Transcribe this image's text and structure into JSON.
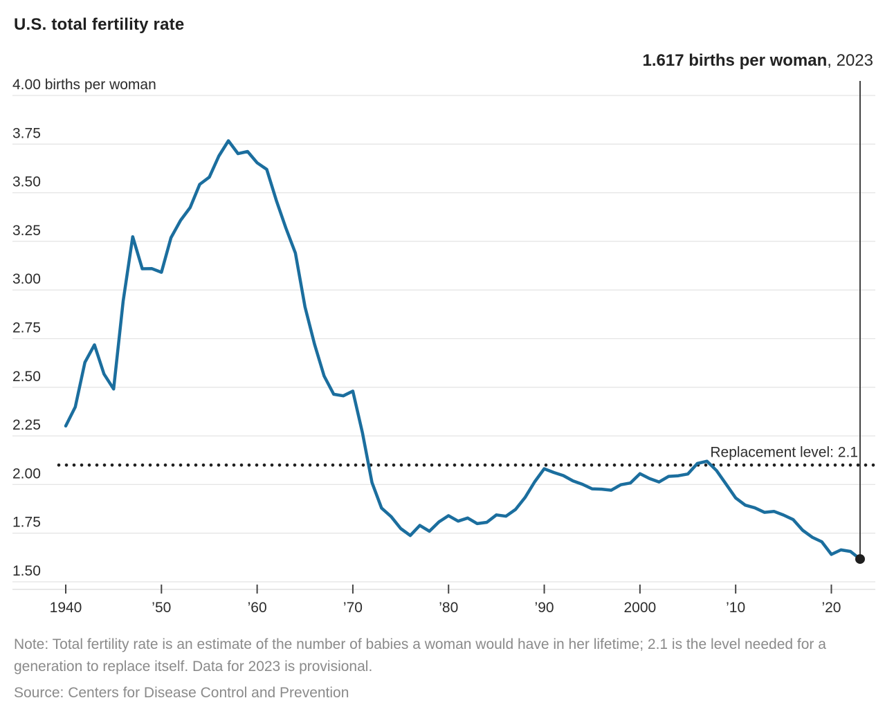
{
  "title": "U.S. total fertility rate",
  "annotation": {
    "value_bold": "1.617 births per woman",
    "year_suffix": ", 2023"
  },
  "note": "Note: Total fertility rate is an estimate of the number of babies a woman would have in her lifetime; 2.1 is the level needed for a generation to replace itself. Data for 2023 is provisional.",
  "source": "Source: Centers for Disease Control and Prevention",
  "colors": {
    "line": "#1b6e9e",
    "grid": "#e4e4e4",
    "axis_line": "#d9d9d9",
    "tick": "#444444",
    "axis_label": "#2b2b2b",
    "muted_text": "#8a8a8a",
    "dark": "#1e1e1e",
    "vertical_line": "#3f3f3f"
  },
  "chart_data": {
    "type": "line",
    "title": "U.S. total fertility rate",
    "unit": "births per woman",
    "xlabel": "",
    "ylabel": "births per woman",
    "ylim": [
      1.5,
      4.0
    ],
    "xlim": [
      1940,
      2023
    ],
    "grid": true,
    "legend_position": "none",
    "y_ticks": [
      {
        "v": 4.0,
        "label": "4.00 births per woman"
      },
      {
        "v": 3.75,
        "label": "3.75"
      },
      {
        "v": 3.5,
        "label": "3.50"
      },
      {
        "v": 3.25,
        "label": "3.25"
      },
      {
        "v": 3.0,
        "label": "3.00"
      },
      {
        "v": 2.75,
        "label": "2.75"
      },
      {
        "v": 2.5,
        "label": "2.50"
      },
      {
        "v": 2.25,
        "label": "2.25"
      },
      {
        "v": 2.0,
        "label": "2.00"
      },
      {
        "v": 1.75,
        "label": "1.75"
      },
      {
        "v": 1.5,
        "label": "1.50"
      }
    ],
    "x_ticks": [
      {
        "year": 1940,
        "label": "1940"
      },
      {
        "year": 1950,
        "label": "’50"
      },
      {
        "year": 1960,
        "label": "’60"
      },
      {
        "year": 1970,
        "label": "’70"
      },
      {
        "year": 1980,
        "label": "’80"
      },
      {
        "year": 1990,
        "label": "’90"
      },
      {
        "year": 2000,
        "label": "2000"
      },
      {
        "year": 2010,
        "label": "’10"
      },
      {
        "year": 2020,
        "label": "’20"
      }
    ],
    "replacement_level": {
      "value": 2.1,
      "label": "Replacement level: 2.1"
    },
    "series": [
      {
        "name": "U.S. total fertility rate",
        "x_start": 1940,
        "x_step": 1,
        "values": [
          2.301,
          2.399,
          2.628,
          2.718,
          2.568,
          2.491,
          2.943,
          3.274,
          3.109,
          3.11,
          3.091,
          3.269,
          3.358,
          3.424,
          3.543,
          3.58,
          3.689,
          3.767,
          3.701,
          3.712,
          3.654,
          3.62,
          3.461,
          3.319,
          3.19,
          2.913,
          2.721,
          2.558,
          2.464,
          2.456,
          2.48,
          2.266,
          2.01,
          1.879,
          1.835,
          1.774,
          1.738,
          1.79,
          1.76,
          1.808,
          1.84,
          1.812,
          1.828,
          1.799,
          1.806,
          1.844,
          1.837,
          1.872,
          1.934,
          2.014,
          2.081,
          2.062,
          2.046,
          2.019,
          2.001,
          1.978,
          1.976,
          1.971,
          1.999,
          2.008,
          2.056,
          2.031,
          2.013,
          2.042,
          2.045,
          2.054,
          2.108,
          2.12,
          2.072,
          2.002,
          1.931,
          1.894,
          1.88,
          1.857,
          1.862,
          1.843,
          1.82,
          1.765,
          1.729,
          1.706,
          1.641,
          1.664,
          1.656,
          1.617
        ]
      }
    ],
    "end_point": {
      "year": 2023,
      "value": 1.617
    }
  }
}
